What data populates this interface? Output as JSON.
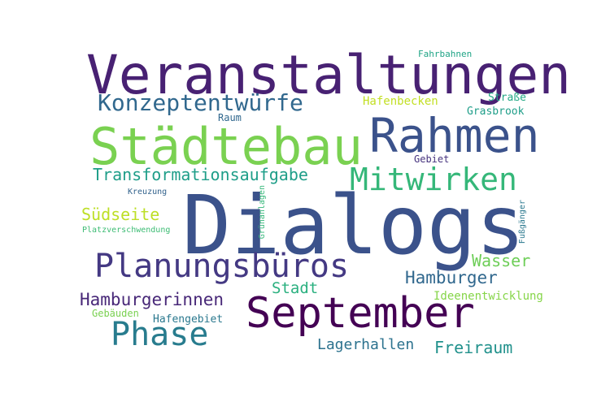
{
  "words": {
    "dialogs": {
      "text": "Dialogs",
      "color": "#3b528b"
    },
    "veranstaltungen": {
      "text": "Veranstaltungen",
      "color": "#482173"
    },
    "staedtebau": {
      "text": "Städtebau",
      "color": "#7ad151"
    },
    "rahmen": {
      "text": "Rahmen",
      "color": "#3b528b"
    },
    "september": {
      "text": "September",
      "color": "#440154"
    },
    "planungsbueros": {
      "text": "Planungsbüros",
      "color": "#443983"
    },
    "mitwirken": {
      "text": "Mitwirken",
      "color": "#35b779"
    },
    "phase": {
      "text": "Phase",
      "color": "#287c8e"
    },
    "konzeptentwuerfe": {
      "text": "Konzeptentwürfe",
      "color": "#31688e"
    },
    "hamburgerinnen": {
      "text": "Hamburgerinnen",
      "color": "#482878"
    },
    "hamburger": {
      "text": "Hamburger",
      "color": "#31688e"
    },
    "transformationsaufgabe": {
      "text": "Transformationsaufgabe",
      "color": "#1f9e89"
    },
    "suedseite": {
      "text": "Südseite",
      "color": "#bddf26"
    },
    "wasser": {
      "text": "Wasser",
      "color": "#6ece58"
    },
    "freiraum": {
      "text": "Freiraum",
      "color": "#21918c"
    },
    "stadt": {
      "text": "Stadt",
      "color": "#2ab07f"
    },
    "lagerhallen": {
      "text": "Lagerhallen",
      "color": "#2c728e"
    },
    "ideenentwicklung": {
      "text": "Ideenentwicklung",
      "color": "#86d549"
    },
    "hafenbecken": {
      "text": "Hafenbecken",
      "color": "#c2df23"
    },
    "strasse": {
      "text": "Straße",
      "color": "#22a884"
    },
    "grasbrook": {
      "text": "Grasbrook",
      "color": "#1f9e89"
    },
    "raum": {
      "text": "Raum",
      "color": "#31688e"
    },
    "gebiet": {
      "text": "Gebiet",
      "color": "#46337e"
    },
    "hafengebiet": {
      "text": "Hafengebiet",
      "color": "#2a788e"
    },
    "gebaeuden": {
      "text": "Gebäuden",
      "color": "#7ad151"
    },
    "fahrbahnen": {
      "text": "Fahrbahnen",
      "color": "#20a486"
    },
    "kreuzung": {
      "text": "Kreuzung",
      "color": "#33638d"
    },
    "platzverschwendung": {
      "text": "Platzverschwendung",
      "color": "#3dbc74"
    },
    "gruenanlagen": {
      "text": "Grünanlagen",
      "color": "#35b779"
    },
    "fussgaenger": {
      "text": "Fußgänger",
      "color": "#2a788e"
    }
  }
}
